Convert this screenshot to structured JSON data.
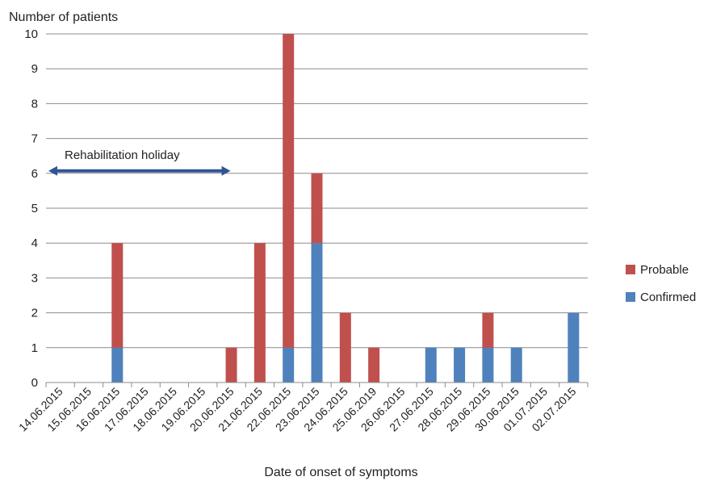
{
  "chart_data": {
    "type": "bar",
    "stacked": true,
    "ylabel": "Number of patients",
    "xlabel": "Date of onset of symptoms",
    "ylim": [
      0,
      10
    ],
    "yticks": [
      0,
      1,
      2,
      3,
      4,
      5,
      6,
      7,
      8,
      9,
      10
    ],
    "grid": true,
    "legend_position": "right",
    "categories": [
      "14.06.2015",
      "15.06.2015",
      "16.06.2015",
      "17.06.2015",
      "18.06.2015",
      "19.06.2015",
      "20.06.2015",
      "21.06.2015",
      "22.06.2015",
      "23.06.2015",
      "24.06.2015",
      "25.06.2019",
      "26.06.2015",
      "27.06.2015",
      "28.06.2015",
      "29.06.2015",
      "30.06.2015",
      "01.07.2015",
      "02.07.2015"
    ],
    "series": [
      {
        "name": "Confirmed",
        "color": "#4f81bd",
        "values": [
          0,
          0,
          1,
          0,
          0,
          0,
          0,
          0,
          1,
          4,
          0,
          0,
          0,
          1,
          1,
          1,
          1,
          0,
          2
        ]
      },
      {
        "name": "Probable",
        "color": "#c0504d",
        "values": [
          0,
          0,
          3,
          0,
          0,
          0,
          1,
          4,
          9,
          2,
          2,
          1,
          0,
          0,
          0,
          1,
          0,
          0,
          0
        ]
      }
    ],
    "legend_order": [
      "Probable",
      "Confirmed"
    ],
    "annotations": [
      {
        "text": "Rehabilitation holiday",
        "from_category": "14.06.2015",
        "to_category": "20.06.2015",
        "y": 6,
        "arrow": "double-headed",
        "color": "#2f5597"
      }
    ]
  }
}
